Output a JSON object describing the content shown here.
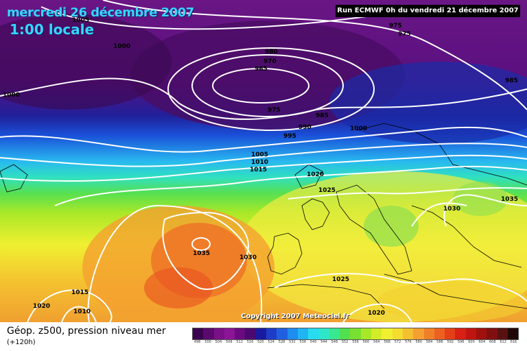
{
  "header": {
    "date": "mercredi 26 décembre 2007",
    "time": "1:00 locale",
    "run": "Run ECMWF 0h du vendredi 21 décembre 2007"
  },
  "footer": {
    "parameter": "Géop. z500, pression niveau mer",
    "lead_time": "(+120h)",
    "copyright": "Copyright 2007 Meteociel.fr"
  },
  "isobar_labels": [
    "1005",
    "1000",
    "980",
    "975",
    "970",
    "965",
    "975",
    "985",
    "990",
    "995",
    "1000",
    "1005",
    "1010",
    "1015",
    "1020",
    "1025",
    "1030",
    "1035",
    "1035",
    "1030",
    "1025",
    "1015",
    "1010",
    "1020",
    "1020",
    "1000",
    "975",
    "985"
  ],
  "legend": {
    "values": [
      "496",
      "500",
      "504",
      "508",
      "512",
      "516",
      "520",
      "524",
      "528",
      "532",
      "536",
      "540",
      "544",
      "548",
      "552",
      "556",
      "560",
      "564",
      "568",
      "572",
      "576",
      "580",
      "584",
      "588",
      "592",
      "596",
      "600",
      "604",
      "608",
      "612",
      "616"
    ],
    "colors": [
      "#3c0050",
      "#5a0a6e",
      "#7a1088",
      "#8c1496",
      "#6a0a80",
      "#4a0870",
      "#1a1aa0",
      "#1e3cc8",
      "#2060e0",
      "#1e8cf0",
      "#20b4f4",
      "#28dcf0",
      "#2ee6c8",
      "#38e890",
      "#50e050",
      "#78e030",
      "#a8e828",
      "#d4ec28",
      "#f0f030",
      "#f4dc30",
      "#f4c030",
      "#f4a030",
      "#f08028",
      "#ec6020",
      "#e44018",
      "#d82014",
      "#c01410",
      "#a0100c",
      "#801010",
      "#581010",
      "#200808"
    ]
  },
  "colors": {
    "title": "#37d6ff",
    "isobar": "#ffffff"
  }
}
